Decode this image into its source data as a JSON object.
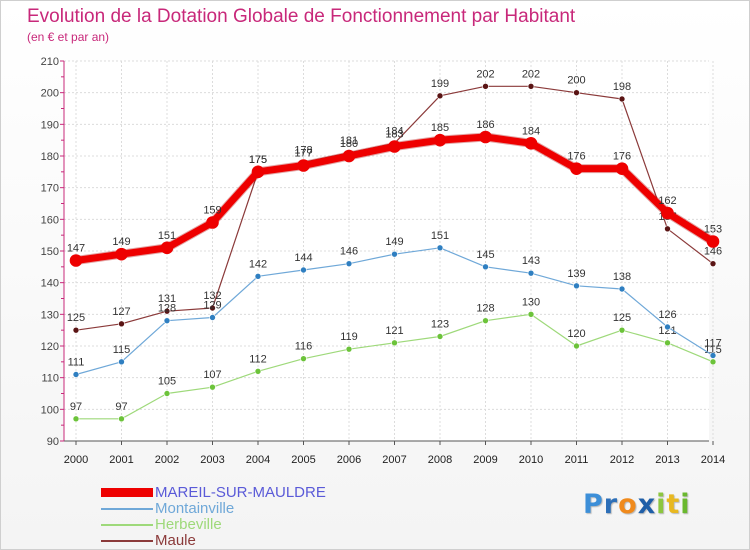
{
  "title": "Evolution de la Dotation Globale de Fonctionnement par Habitant",
  "subtitle": "(en € et par an)",
  "logo": {
    "letters": [
      {
        "char": "P",
        "color": "#3d8fd8"
      },
      {
        "char": "r",
        "color": "#2d6fb8"
      },
      {
        "char": "o",
        "color": "#f08a1c"
      },
      {
        "char": "x",
        "color": "#1f5fa8"
      },
      {
        "char": "i",
        "color": "#8cc63f"
      },
      {
        "char": "t",
        "color": "#e8b820"
      },
      {
        "char": "i",
        "color": "#6ab82e"
      }
    ]
  },
  "chart_data": {
    "type": "line",
    "x": [
      "2000",
      "2001",
      "2002",
      "2003",
      "2004",
      "2005",
      "2006",
      "2007",
      "2008",
      "2009",
      "2010",
      "2011",
      "2012",
      "2013",
      "2014"
    ],
    "ylim": [
      90,
      210
    ],
    "yticks": [
      "90",
      "100",
      "110",
      "120",
      "130",
      "140",
      "150",
      "160",
      "170",
      "180",
      "190",
      "200",
      "210"
    ],
    "grid": true,
    "legend": "bottom-left",
    "series": [
      {
        "name": "Maule",
        "color": "#8b3a3a",
        "dot": "#5a1414",
        "width": 1.2,
        "r": 3,
        "values": [
          125,
          127,
          131,
          132,
          175,
          178,
          181,
          184,
          199,
          202,
          202,
          200,
          198,
          157,
          146
        ],
        "labels": [
          "125",
          "127",
          "131",
          "132",
          "175",
          "178",
          "181",
          "184",
          "199",
          "202",
          "202",
          "200",
          "198",
          "157",
          "146"
        ]
      },
      {
        "name": "Herbeville",
        "color": "#9ed97a",
        "dot": "#6cc33a",
        "width": 1.2,
        "r": 3,
        "values": [
          97,
          97,
          105,
          107,
          112,
          116,
          119,
          121,
          123,
          128,
          130,
          120,
          125,
          121,
          115
        ],
        "labels": [
          "97",
          "97",
          "105",
          "107",
          "112",
          "116",
          "119",
          "121",
          "123",
          "128",
          "130",
          "120",
          "125",
          "121",
          "115"
        ]
      },
      {
        "name": "Montainville",
        "color": "#6fa8d8",
        "dot": "#2f7fc1",
        "width": 1.2,
        "r": 3,
        "values": [
          111,
          115,
          128,
          129,
          142,
          144,
          146,
          149,
          151,
          145,
          143,
          139,
          138,
          126,
          117
        ],
        "labels": [
          "111",
          "115",
          "128",
          "129",
          "142",
          "144",
          "146",
          "149",
          "151",
          "145",
          "143",
          "139",
          "138",
          "126",
          "117"
        ]
      },
      {
        "name": "MAREIL-SUR-MAULDRE",
        "color": "#ee0000",
        "dot": "#ee0000",
        "width": 7,
        "r": 6,
        "values": [
          147,
          149,
          151,
          159,
          175,
          177,
          180,
          183,
          185,
          186,
          184,
          176,
          176,
          162,
          153
        ],
        "labels": [
          "147",
          "149",
          "151",
          "159",
          "175",
          "177",
          "180",
          "183",
          "185",
          "186",
          "184",
          "176",
          "176",
          "162",
          "153"
        ]
      }
    ],
    "legend_order": [
      "MAREIL-SUR-MAULDRE",
      "Montainville",
      "Herbeville",
      "Maule"
    ]
  }
}
